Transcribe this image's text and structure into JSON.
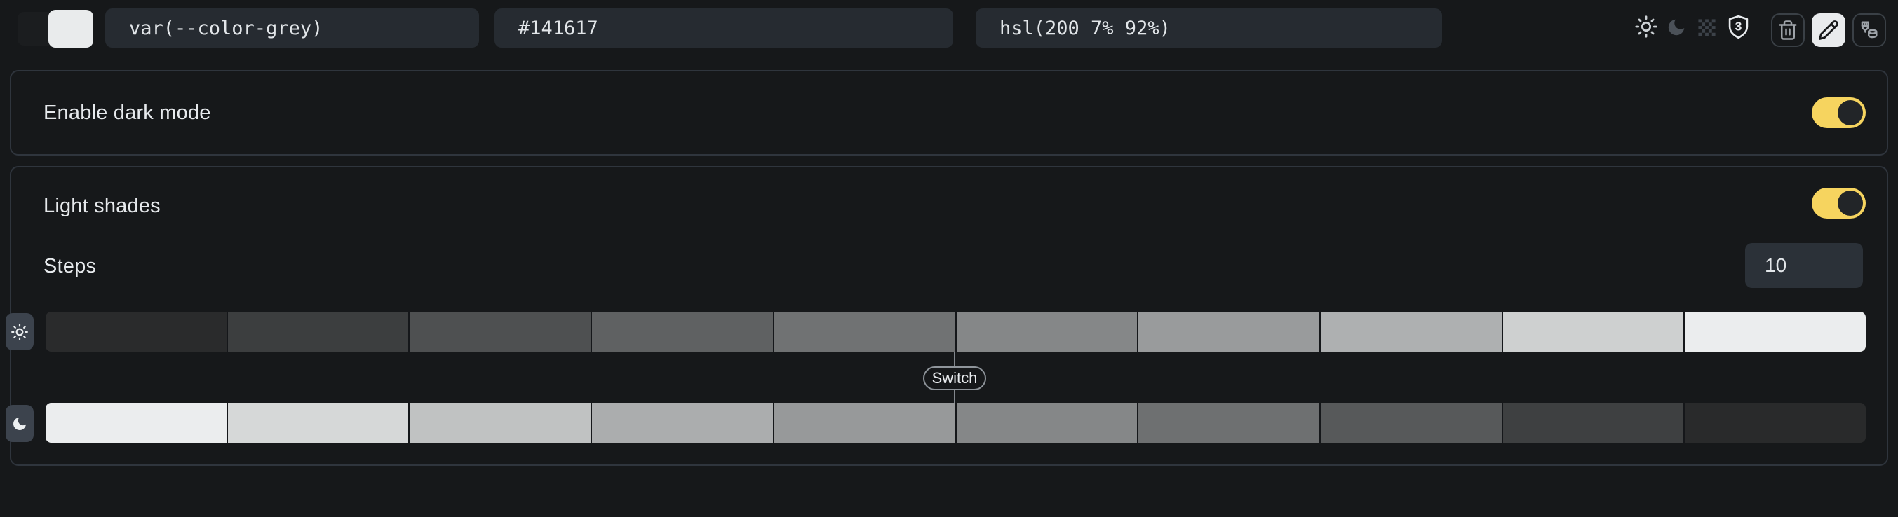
{
  "colors": {
    "page_background": "#16181a",
    "card_border": "#2f353d",
    "input_background": "#262b31",
    "steps_input_background": "#2b3138",
    "accent_yellow": "#f6d45f",
    "toggle_knob": "#222528",
    "row_badge_background": "#3c434d",
    "base_dark_color": "#141617",
    "base_light_color": "#e9ebec"
  },
  "topbar": {
    "color_swatch": {
      "dark": "#141617",
      "light": "#e9ebec"
    },
    "inputs": {
      "variable": {
        "value": "var(--color-grey)"
      },
      "hex": {
        "value": "#141617"
      },
      "hsl": {
        "value": "hsl(200 7% 92%)"
      }
    },
    "icons": [
      "sun",
      "moon",
      "checkerboard",
      "shield-3",
      "trash",
      "pencil",
      "brush-stack"
    ],
    "shield_badge_text": "3",
    "active_tool": "pencil"
  },
  "dark_mode_section": {
    "label": "Enable dark mode",
    "enabled": true
  },
  "shades_section": {
    "title": "Light shades",
    "enabled": true,
    "steps_label": "Steps",
    "steps_value": "10",
    "switch_label": "Switch",
    "switch_after_step": 5,
    "light_shades": [
      "#2a2b2c",
      "#3c3e3f",
      "#4e5051",
      "#5f6162",
      "#707273",
      "#858788",
      "#999b9c",
      "#aeb0b1",
      "#ced0d0",
      "#ebedee"
    ],
    "dark_shades": [
      "#ebedee",
      "#d6d8d8",
      "#c0c2c2",
      "#abadae",
      "#97999a",
      "#858788",
      "#6e7071",
      "#57595a",
      "#3e4041",
      "#292a2b"
    ]
  }
}
